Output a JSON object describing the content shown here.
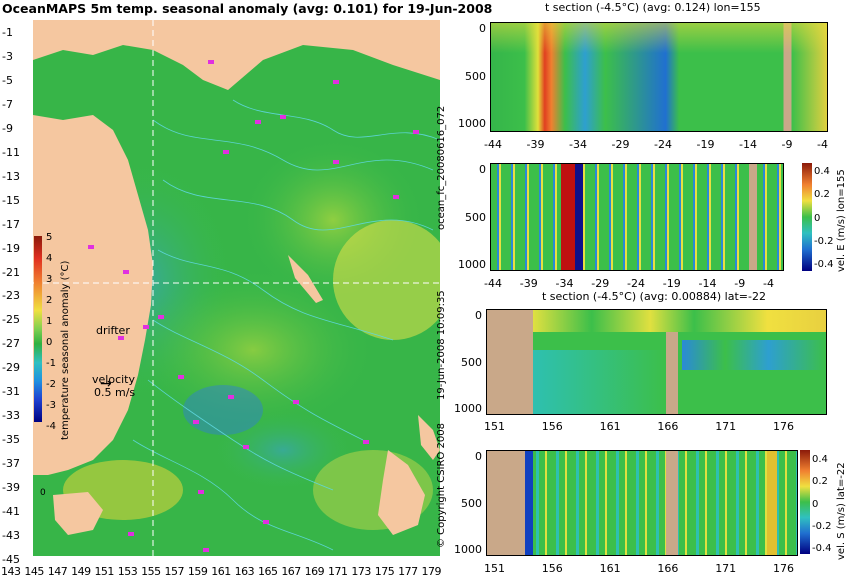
{
  "title": "OceanMAPS 5m temp. seasonal anomaly (avg: 0.101) for 19-Jun-2008",
  "map": {
    "lat_ticks": [
      "-1",
      "-3",
      "-5",
      "-7",
      "-9",
      "-11",
      "-13",
      "-15",
      "-17",
      "-19",
      "-21",
      "-23",
      "-25",
      "-27",
      "-29",
      "-31",
      "-33",
      "-35",
      "-37",
      "-39",
      "-41",
      "-43",
      "-45"
    ],
    "lon_ticks": [
      "143",
      "145",
      "147",
      "149",
      "151",
      "153",
      "155",
      "157",
      "159",
      "161",
      "163",
      "165",
      "167",
      "169",
      "171",
      "173",
      "175",
      "177",
      "179"
    ],
    "colorbar": {
      "label": "temperature seasonal anomaly (°C)",
      "ticks": [
        "5",
        "4",
        "3",
        "2",
        "1",
        "0",
        "-1",
        "-2",
        "-3",
        "-4"
      ]
    },
    "drifter_label": "drifter",
    "velocity_label": "velocity",
    "velocity_value": "0.5 m/s",
    "corner_zero": "0",
    "colors": {
      "land": "#f5c7a0",
      "ocean": "#2fb84a",
      "contour": "#5fd8e0",
      "drifter": "#e030e0"
    }
  },
  "side_text": {
    "run_id": "ocean_fc_20080616_072",
    "issued": "19-Jun-2008 10:09:35",
    "copyright": "© Copyright CSIRO 2008"
  },
  "panels": [
    {
      "title": "t section (-4.5°C) (avg: 0.124) lon=155",
      "y_ticks": [
        "0",
        "500",
        "1000"
      ],
      "x_ticks": [
        "-44",
        "-39",
        "-34",
        "-29",
        "-24",
        "-19",
        "-14",
        "-9",
        "-4"
      ]
    },
    {
      "title": "",
      "y_ticks": [
        "0",
        "500",
        "1000"
      ],
      "x_ticks": [
        "-44",
        "-39",
        "-34",
        "-29",
        "-24",
        "-19",
        "-14",
        "-9",
        "-4"
      ],
      "cbar_label": "vel. E (m/s) lon=155",
      "cbar_ticks": [
        "0.4",
        "0.2",
        "0",
        "-0.2",
        "-0.4"
      ]
    },
    {
      "title": "t section (-4.5°C) (avg: 0.00884) lat=-22",
      "y_ticks": [
        "0",
        "500",
        "1000"
      ],
      "x_ticks": [
        "151",
        "156",
        "161",
        "166",
        "171",
        "176"
      ]
    },
    {
      "title": "",
      "y_ticks": [
        "0",
        "500",
        "1000"
      ],
      "x_ticks": [
        "151",
        "156",
        "161",
        "166",
        "171",
        "176"
      ],
      "cbar_label": "vel. S (m/s) lat=-22",
      "cbar_ticks": [
        "0.4",
        "0.2",
        "0",
        "-0.2",
        "-0.4"
      ]
    }
  ]
}
